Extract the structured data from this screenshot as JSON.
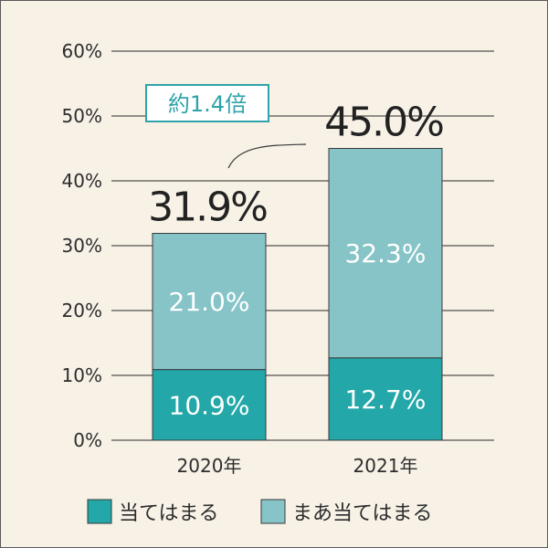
{
  "chart_data": {
    "type": "bar",
    "stacked": true,
    "categories": [
      "2020年",
      "2021年"
    ],
    "series": [
      {
        "name": "当てはまる",
        "values": [
          10.9,
          12.7
        ],
        "labels": [
          "10.9%",
          "12.7%"
        ],
        "color": "#23a7a8"
      },
      {
        "name": "まあ当てはまる",
        "values": [
          21.0,
          32.3
        ],
        "labels": [
          "21.0%",
          "32.3%"
        ],
        "color": "#86c4c8"
      }
    ],
    "totals": [
      31.9,
      45.0
    ],
    "total_labels": [
      "31.9%",
      "45.0%"
    ],
    "yticks": [
      "0%",
      "10%",
      "20%",
      "30%",
      "40%",
      "50%",
      "60%"
    ],
    "ylim": [
      0,
      60
    ],
    "grid": true,
    "legend_position": "bottom",
    "annotation": "約1.4倍",
    "title": "",
    "xlabel": "",
    "ylabel": ""
  }
}
